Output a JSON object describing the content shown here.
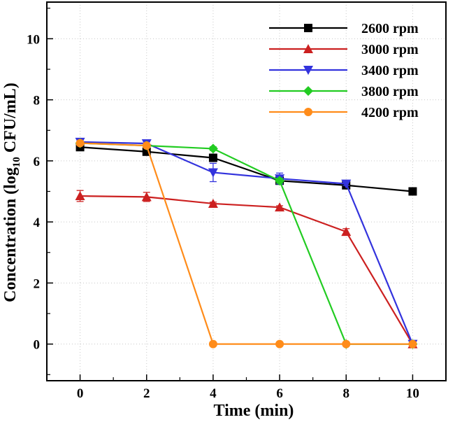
{
  "chart_data": {
    "type": "line",
    "xlabel": "Time (min)",
    "ylabel_prefix": "Concentration (log",
    "ylabel_sub": "10",
    "ylabel_suffix": " CFU/mL)",
    "xlim": [
      -1,
      11
    ],
    "ylim": [
      -1.2,
      11.2
    ],
    "xticks": [
      0,
      2,
      4,
      6,
      8,
      10
    ],
    "yticks": [
      0,
      2,
      4,
      6,
      8,
      10
    ],
    "grid": true,
    "legend_position": "top-right",
    "series": [
      {
        "name": "2600 rpm",
        "marker": "square",
        "color": "#000000",
        "x": [
          0,
          2,
          4,
          6,
          8,
          10
        ],
        "y": [
          6.45,
          6.3,
          6.1,
          5.35,
          5.2,
          5.0
        ],
        "err": [
          0.1,
          0.08,
          0.12,
          0.1,
          0.08,
          0.06
        ]
      },
      {
        "name": "3000 rpm",
        "marker": "triangle-up",
        "color": "#cc2020",
        "x": [
          0,
          2,
          4,
          6,
          8,
          10
        ],
        "y": [
          4.85,
          4.82,
          4.6,
          4.48,
          3.68,
          0.0
        ],
        "err": [
          0.18,
          0.15,
          0.05,
          0.05,
          0.1,
          0.0
        ]
      },
      {
        "name": "3400 rpm",
        "marker": "triangle-down",
        "color": "#3333dd",
        "x": [
          0,
          2,
          4,
          6,
          8,
          10
        ],
        "y": [
          6.62,
          6.57,
          5.62,
          5.42,
          5.25,
          0.0
        ],
        "err": [
          0.06,
          0.06,
          0.3,
          0.18,
          0.06,
          0.0
        ]
      },
      {
        "name": "3800 rpm",
        "marker": "diamond",
        "color": "#22cc22",
        "x": [
          0,
          2,
          4,
          6,
          8,
          10
        ],
        "y": [
          6.58,
          6.5,
          6.4,
          5.35,
          0.0,
          0.0
        ],
        "err": [
          0.05,
          0.05,
          0.06,
          0.08,
          0.0,
          0.0
        ]
      },
      {
        "name": "4200 rpm",
        "marker": "circle",
        "color": "#ff8c1a",
        "x": [
          0,
          2,
          4,
          6,
          8,
          10
        ],
        "y": [
          6.58,
          6.5,
          0.0,
          0.0,
          0.0,
          0.0
        ],
        "err": [
          0.05,
          0.05,
          0.0,
          0.0,
          0.0,
          0.0
        ]
      }
    ]
  }
}
